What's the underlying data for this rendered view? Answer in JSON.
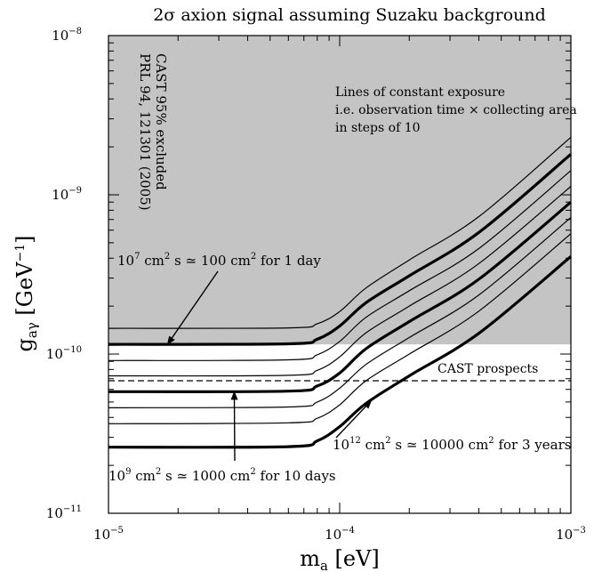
{
  "chart_data": {
    "type": "line",
    "title": "2σ axion signal assuming Suzaku background",
    "xlabel": "m_a [eV]",
    "ylabel": "g_aγ [GeV⁻¹]",
    "x_scale": "log",
    "y_scale": "log",
    "xlim": [
      1e-05,
      0.001
    ],
    "ylim": [
      1e-11,
      1e-08
    ],
    "grid": false,
    "x_ticks": [
      {
        "value": 1e-05,
        "base": "10",
        "exp": "−5"
      },
      {
        "value": 0.0001,
        "base": "10",
        "exp": "−4"
      },
      {
        "value": 0.001,
        "base": "10",
        "exp": "−3"
      }
    ],
    "y_ticks": [
      {
        "value": 1e-11,
        "base": "10",
        "exp": "−11"
      },
      {
        "value": 1e-10,
        "base": "10",
        "exp": "−10"
      },
      {
        "value": 1e-09,
        "base": "10",
        "exp": "−9"
      },
      {
        "value": 1e-08,
        "base": "10",
        "exp": "−8"
      }
    ],
    "excluded_region": {
      "g_min": 1.15e-10,
      "label_line1": "CAST 95% excluded",
      "label_line2": "PRL 94, 121301 (2005)",
      "color": "#c4c4c4"
    },
    "cast_prospects": {
      "g": 6.8e-11,
      "label": "CAST prospects"
    },
    "exposure_lines": [
      {
        "bold": false,
        "points": [
          [
            1e-05,
            1.45e-10
          ],
          [
            6e-05,
            1.46e-10
          ],
          [
            8e-05,
            1.55e-10
          ],
          [
            0.0001,
            1.85e-10
          ],
          [
            0.00013,
            2.6e-10
          ],
          [
            0.0002,
            3.9e-10
          ],
          [
            0.0004,
            7.3e-10
          ],
          [
            0.001,
            2.3e-09
          ]
        ]
      },
      {
        "bold": true,
        "points": [
          [
            1e-05,
            1.15e-10
          ],
          [
            6e-05,
            1.16e-10
          ],
          [
            8e-05,
            1.24e-10
          ],
          [
            0.0001,
            1.5e-10
          ],
          [
            0.00013,
            2.1e-10
          ],
          [
            0.0002,
            3.1e-10
          ],
          [
            0.0004,
            5.8e-10
          ],
          [
            0.001,
            1.8e-09
          ]
        ]
      },
      {
        "bold": false,
        "points": [
          [
            1e-05,
            9.1e-11
          ],
          [
            6e-05,
            9.2e-11
          ],
          [
            8e-05,
            9.9e-11
          ],
          [
            0.0001,
            1.2e-10
          ],
          [
            0.00013,
            1.7e-10
          ],
          [
            0.0002,
            2.5e-10
          ],
          [
            0.0004,
            4.6e-10
          ],
          [
            0.001,
            1.42e-09
          ]
        ]
      },
      {
        "bold": false,
        "points": [
          [
            1e-05,
            7.3e-11
          ],
          [
            6e-05,
            7.35e-11
          ],
          [
            8e-05,
            7.9e-11
          ],
          [
            0.0001,
            9.6e-11
          ],
          [
            0.00013,
            1.36e-10
          ],
          [
            0.0002,
            2e-10
          ],
          [
            0.0004,
            3.7e-10
          ],
          [
            0.001,
            1.13e-09
          ]
        ]
      },
      {
        "bold": true,
        "points": [
          [
            1e-05,
            5.8e-11
          ],
          [
            6e-05,
            5.85e-11
          ],
          [
            8e-05,
            6.3e-11
          ],
          [
            0.0001,
            7.6e-11
          ],
          [
            0.00013,
            1.08e-10
          ],
          [
            0.0002,
            1.6e-10
          ],
          [
            0.0004,
            2.95e-10
          ],
          [
            0.001,
            9e-10
          ]
        ]
      },
      {
        "bold": false,
        "points": [
          [
            1e-05,
            4.6e-11
          ],
          [
            6e-05,
            4.65e-11
          ],
          [
            8e-05,
            5e-11
          ],
          [
            0.0001,
            6.1e-11
          ],
          [
            0.00013,
            8.6e-11
          ],
          [
            0.0002,
            1.27e-10
          ],
          [
            0.0004,
            2.35e-10
          ],
          [
            0.001,
            7.2e-10
          ]
        ]
      },
      {
        "bold": false,
        "points": [
          [
            1e-05,
            3.65e-11
          ],
          [
            6e-05,
            3.7e-11
          ],
          [
            8e-05,
            3.95e-11
          ],
          [
            0.0001,
            4.8e-11
          ],
          [
            0.00013,
            6.8e-11
          ],
          [
            0.0002,
            1e-10
          ],
          [
            0.0004,
            1.86e-10
          ],
          [
            0.001,
            5.7e-10
          ]
        ]
      },
      {
        "bold": true,
        "points": [
          [
            1e-05,
            2.6e-11
          ],
          [
            6e-05,
            2.62e-11
          ],
          [
            8e-05,
            2.85e-11
          ],
          [
            0.0001,
            3.5e-11
          ],
          [
            0.00013,
            4.9e-11
          ],
          [
            0.0002,
            7.3e-11
          ],
          [
            0.0004,
            1.35e-10
          ],
          [
            0.001,
            4.1e-10
          ]
        ]
      }
    ],
    "annotations": {
      "exposure_note": [
        "Lines of constant exposure",
        "i.e. observation time × collecting area",
        "in steps of 10"
      ],
      "arrow_1day": {
        "base": "10",
        "exp1": "7",
        "mid": " cm",
        "exp2": "2",
        "rest": " s ≃ 100 cm",
        "exp3": "2",
        "tail": " for 1 day",
        "target": [
          1.8e-05,
          1.15e-10
        ]
      },
      "arrow_10days": {
        "base": "10",
        "exp1": "9",
        "mid": " cm",
        "exp2": "2",
        "rest": " s ≃ 1000 cm",
        "exp3": "2",
        "tail": " for 10 days",
        "target": [
          3.5e-05,
          5.8e-11
        ]
      },
      "arrow_3years": {
        "base": "10",
        "exp1": "12",
        "mid": " cm",
        "exp2": "2",
        "rest": " s ≃ 10000 cm",
        "exp3": "2",
        "tail": " for 3 years",
        "target": [
          0.000137,
          5.1e-11
        ]
      }
    }
  }
}
